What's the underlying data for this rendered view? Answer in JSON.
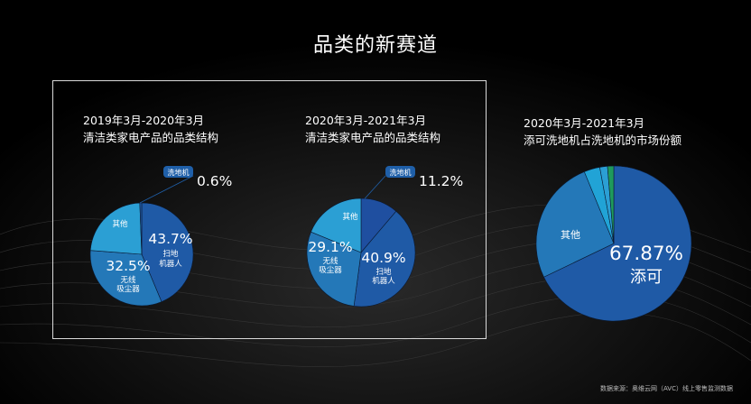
{
  "page": {
    "title": "品类的新赛道",
    "source": "数据来源：奥维云网（AVC）线上零售监测数据"
  },
  "colors": {
    "background": "#000000",
    "pie_dark": "#1f5aa6",
    "pie_mid": "#2478b8",
    "pie_light": "#2b9fd4",
    "pie_cyan": "#21a3d6",
    "pie_green": "#1f9a5c",
    "tag": "#1f5fa8"
  },
  "chart_data": [
    {
      "type": "pie",
      "title": "2019年3月-2020年3月",
      "subtitle": "清洁类家电产品的品类结构",
      "slices": [
        {
          "label": "扫地机器人",
          "value": 43.7,
          "value_text": "43.7%",
          "name_line1": "扫地",
          "name_line2": "机器人",
          "color": "#1f5aa6"
        },
        {
          "label": "无线吸尘器",
          "value": 32.5,
          "value_text": "32.5%",
          "name_line1": "无线",
          "name_line2": "吸尘器",
          "color": "#2478b8"
        },
        {
          "label": "其他",
          "value": 23.2,
          "value_text": "",
          "name_line1": "其他",
          "name_line2": "",
          "color": "#2b9fd4"
        },
        {
          "label": "洗地机",
          "value": 0.6,
          "value_text": "0.6%",
          "name_line1": "洗地机",
          "name_line2": "",
          "color": "#1f5aa6"
        }
      ]
    },
    {
      "type": "pie",
      "title": "2020年3月-2021年3月",
      "subtitle": "清洁类家电产品的品类结构",
      "slices": [
        {
          "label": "洗地机",
          "value": 11.2,
          "value_text": "11.2%",
          "name_line1": "洗地机",
          "name_line2": "",
          "color": "#1f4fa0"
        },
        {
          "label": "扫地机器人",
          "value": 40.9,
          "value_text": "40.9%",
          "name_line1": "扫地",
          "name_line2": "机器人",
          "color": "#1f5aa6"
        },
        {
          "label": "无线吸尘器",
          "value": 29.1,
          "value_text": "29.1%",
          "name_line1": "无线",
          "name_line2": "吸尘器",
          "color": "#2478b8"
        },
        {
          "label": "其他",
          "value": 18.8,
          "value_text": "",
          "name_line1": "其他",
          "name_line2": "",
          "color": "#2b9fd4"
        }
      ]
    },
    {
      "type": "pie",
      "title": "2020年3月-2021年3月",
      "subtitle": "添可洗地机占洗地机的市场份额",
      "slices": [
        {
          "label": "添可",
          "value": 67.87,
          "value_text": "67.87%",
          "name_line1": "添可",
          "name_line2": "",
          "color": "#1f5aa6"
        },
        {
          "label": "其他",
          "value": 25.93,
          "value_text": "",
          "name_line1": "其他",
          "name_line2": "",
          "color": "#2478b8"
        },
        {
          "label": "",
          "value": 3.3,
          "value_text": "",
          "name_line1": "",
          "name_line2": "",
          "color": "#21a3d6"
        },
        {
          "label": "",
          "value": 1.6,
          "value_text": "",
          "name_line1": "",
          "name_line2": "",
          "color": "#2b9fd4"
        },
        {
          "label": "",
          "value": 1.3,
          "value_text": "",
          "name_line1": "",
          "name_line2": "",
          "color": "#1f9a5c"
        }
      ]
    }
  ]
}
